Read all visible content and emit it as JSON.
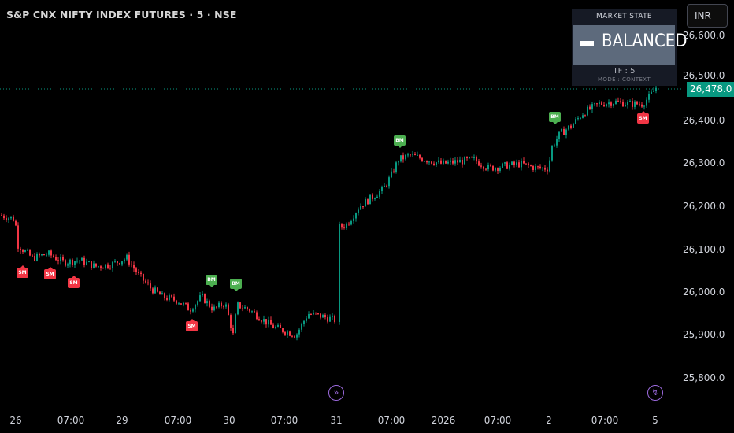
{
  "header": {
    "title": "S&P CNX NIFTY INDEX FUTURES · 5 · NSE",
    "currency": "INR"
  },
  "market_state": {
    "title": "MARKET STATE",
    "state": "BALANCED",
    "tf": "TF : 5",
    "mode": "MODE : CONTEXT"
  },
  "price_axis": {
    "labels": [
      "26,600.0",
      "26,500.0",
      "26,400.0",
      "26,300.0",
      "26,200.0",
      "26,100.0",
      "26,000.0",
      "25,900.0",
      "25,800.0"
    ],
    "last_price": "26,478.0"
  },
  "time_axis": {
    "labels": [
      "26",
      "07:00",
      "29",
      "07:00",
      "30",
      "07:00",
      "31",
      "07:00",
      "2026",
      "07:00",
      "2",
      "07:00",
      "5"
    ]
  },
  "markers": {
    "sm": "SM",
    "bm": "BM"
  },
  "icons": [
    "fast-forward-icon",
    "lightning-icon"
  ],
  "colors": {
    "up": "#089981",
    "down": "#f23645",
    "sm_marker": "#f23645",
    "bm_marker": "#4caf50",
    "state_bg": "#5d6a7c",
    "event_icon": "#9c6ade"
  },
  "chart_data": {
    "type": "candlestick",
    "title": "S&P CNX NIFTY INDEX FUTURES · 5 · NSE",
    "ylim": [
      25750,
      26650
    ],
    "last_price": 26478.0,
    "x_ticks": [
      "26",
      "07:00",
      "29",
      "07:00",
      "30",
      "07:00",
      "31",
      "07:00",
      "2026",
      "07:00",
      "2",
      "07:00",
      "5"
    ],
    "close_path": [
      [
        0,
        26180
      ],
      [
        18,
        26170
      ],
      [
        22,
        26110
      ],
      [
        40,
        26080
      ],
      [
        60,
        26090
      ],
      [
        80,
        26070
      ],
      [
        100,
        26075
      ],
      [
        120,
        26060
      ],
      [
        140,
        26065
      ],
      [
        160,
        26080
      ],
      [
        175,
        26040
      ],
      [
        190,
        26010
      ],
      [
        205,
        25990
      ],
      [
        225,
        25980
      ],
      [
        240,
        25960
      ],
      [
        255,
        25990
      ],
      [
        270,
        25960
      ],
      [
        285,
        25975
      ],
      [
        295,
        25900
      ],
      [
        300,
        25970
      ],
      [
        315,
        25960
      ],
      [
        330,
        25940
      ],
      [
        345,
        25920
      ],
      [
        360,
        25910
      ],
      [
        375,
        25900
      ],
      [
        390,
        25950
      ],
      [
        405,
        25945
      ],
      [
        425,
        25935
      ],
      [
        428,
        26150
      ],
      [
        440,
        26160
      ],
      [
        455,
        26200
      ],
      [
        470,
        26220
      ],
      [
        485,
        26240
      ],
      [
        495,
        26270
      ],
      [
        505,
        26310
      ],
      [
        520,
        26320
      ],
      [
        540,
        26310
      ],
      [
        560,
        26300
      ],
      [
        580,
        26305
      ],
      [
        600,
        26310
      ],
      [
        620,
        26290
      ],
      [
        640,
        26295
      ],
      [
        660,
        26300
      ],
      [
        680,
        26290
      ],
      [
        695,
        26290
      ],
      [
        700,
        26340
      ],
      [
        710,
        26370
      ],
      [
        725,
        26390
      ],
      [
        740,
        26420
      ],
      [
        760,
        26440
      ],
      [
        780,
        26445
      ],
      [
        800,
        26440
      ],
      [
        815,
        26440
      ],
      [
        825,
        26460
      ],
      [
        832,
        26478
      ]
    ],
    "annotations": [
      {
        "label": "SM",
        "x": 28,
        "price": 26080
      },
      {
        "label": "SM",
        "x": 63,
        "price": 26075
      },
      {
        "label": "SM",
        "x": 93,
        "price": 26055
      },
      {
        "label": "SM",
        "x": 243,
        "price": 25955
      },
      {
        "label": "BM",
        "x": 268,
        "price": 25990
      },
      {
        "label": "BM",
        "x": 299,
        "price": 25980
      },
      {
        "label": "BM",
        "x": 507,
        "price": 26315
      },
      {
        "label": "BM",
        "x": 704,
        "price": 26370
      },
      {
        "label": "SM",
        "x": 816,
        "price": 26440
      }
    ]
  }
}
